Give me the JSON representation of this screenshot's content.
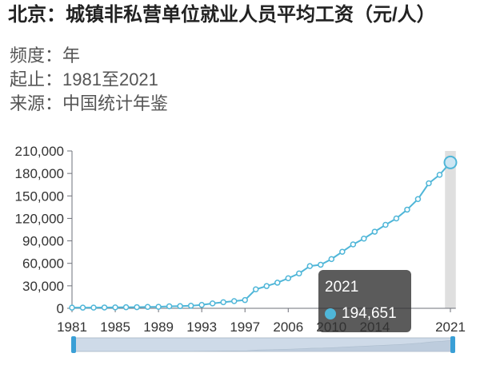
{
  "meta": [
    {
      "label": "频度：",
      "value": "年"
    },
    {
      "label": "起止：",
      "value": "1981至2021"
    },
    {
      "label": "来源：",
      "value": "中国统计年鉴"
    }
  ],
  "tooltip": {
    "label": "2021",
    "value": "194,651"
  },
  "colors": {
    "line": "#4fb6d8",
    "point_fill": "#ffffff",
    "highlight_fill": "#cde6f3",
    "axis": "#6e7079",
    "text": "#333333",
    "pointer_band": "#d9d9d9",
    "slider_bg": "#e3e9ef",
    "slider_border": "#b7c2cd",
    "slider_shadow": "#ccd6e0",
    "slider_selected": "#8fb0d3",
    "slider_handle": "#3a9fd6"
  },
  "chart_data": {
    "type": "line",
    "title": "北京：城镇非私营单位就业人员平均工资（元/人）",
    "x": [
      1981,
      1982,
      1983,
      1984,
      1985,
      1986,
      1987,
      1988,
      1989,
      1990,
      1991,
      1992,
      1993,
      1994,
      1995,
      1996,
      1997,
      2003,
      2004,
      2005,
      2006,
      2007,
      2008,
      2009,
      2010,
      2011,
      2012,
      2013,
      2014,
      2015,
      2016,
      2017,
      2018,
      2019,
      2020,
      2021
    ],
    "series": [
      {
        "values": [
          869,
          888,
          929,
          1123,
          1236,
          1413,
          1527,
          1844,
          2020,
          2653,
          2877,
          3402,
          4523,
          6540,
          8144,
          9579,
          11019,
          25312,
          29674,
          34191,
          40117,
          46507,
          56328,
          58140,
          65683,
          75482,
          85306,
          93006,
          102268,
          111390,
          119928,
          131700,
          145766,
          166803,
          178178,
          194651
        ]
      }
    ],
    "xtick_labels": [
      "1981",
      "1985",
      "1989",
      "1993",
      "1997",
      "2006",
      "2010",
      "2014",
      "2021"
    ],
    "ytick_labels": [
      "0",
      "30,000",
      "60,000",
      "90,000",
      "120,000",
      "150,000",
      "180,000",
      "210,000"
    ],
    "ylim": [
      0,
      210000
    ],
    "grid": false,
    "highlight_x": 2021,
    "data_zoom": {
      "start_percent": 0,
      "end_percent": 100
    }
  }
}
